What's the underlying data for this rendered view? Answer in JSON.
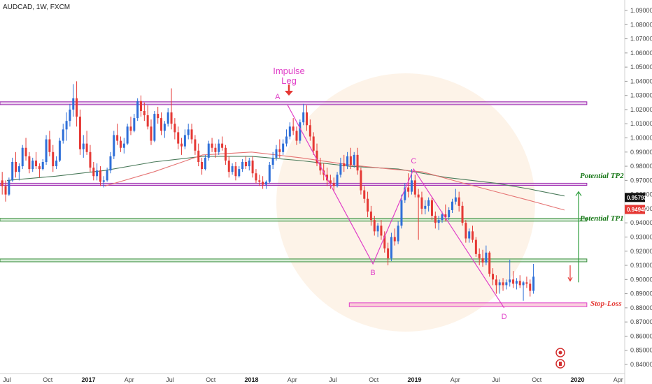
{
  "chart_title": "AUDCAD, 1W, FXCM",
  "chart_data": {
    "type": "candlestick",
    "title": "AUDCAD, 1W, FXCM",
    "symbol": "AUDCAD",
    "timeframe": "1W",
    "broker": "FXCM",
    "ylim": [
      0.835,
      1.095
    ],
    "y_ticks": [
      "0.84000",
      "0.85000",
      "0.86000",
      "0.87000",
      "0.88000",
      "0.89000",
      "0.90000",
      "0.91000",
      "0.92000",
      "0.93000",
      "0.94000",
      "0.95000",
      "0.96000",
      "0.97000",
      "0.98000",
      "0.99000",
      "1.00000",
      "1.01000",
      "1.02000",
      "1.03000",
      "1.04000",
      "1.05000",
      "1.06000",
      "1.07000",
      "1.08000",
      "1.09000"
    ],
    "x_ticks": [
      {
        "label": "Jul",
        "t": 0.0,
        "bold": false
      },
      {
        "label": "Oct",
        "t": 0.25,
        "bold": false
      },
      {
        "label": "2017",
        "t": 0.5,
        "bold": true
      },
      {
        "label": "Apr",
        "t": 0.75,
        "bold": false
      },
      {
        "label": "Jul",
        "t": 1.0,
        "bold": false
      },
      {
        "label": "Oct",
        "t": 1.25,
        "bold": false
      },
      {
        "label": "2018",
        "t": 1.5,
        "bold": true
      },
      {
        "label": "Apr",
        "t": 1.75,
        "bold": false
      },
      {
        "label": "Jul",
        "t": 2.0,
        "bold": false
      },
      {
        "label": "Oct",
        "t": 2.25,
        "bold": false
      },
      {
        "label": "2019",
        "t": 2.5,
        "bold": true
      },
      {
        "label": "Apr",
        "t": 2.75,
        "bold": false
      },
      {
        "label": "Jul",
        "t": 3.0,
        "bold": false
      },
      {
        "label": "Oct",
        "t": 3.25,
        "bold": false
      },
      {
        "label": "2020",
        "t": 3.5,
        "bold": true
      },
      {
        "label": "Apr",
        "t": 3.75,
        "bold": false
      }
    ],
    "price_line": 0.95793,
    "price_line_label": "0.95793",
    "ma_label_value": "0.94945",
    "zones": [
      {
        "name": "top-resistance",
        "y1": 1.0255,
        "y2": 1.0235,
        "t_end": 3.45,
        "color": "#9c27b0",
        "fill": "#e1bee7"
      },
      {
        "name": "tp2-zone",
        "y1": 0.968,
        "y2": 0.9665,
        "t_end": 3.45,
        "color": "#9c27b0",
        "fill": "#e1bee7"
      },
      {
        "name": "tp1-zone",
        "y1": 0.9432,
        "y2": 0.9412,
        "t_end": 3.45,
        "color": "#388e3c",
        "fill": "#c8e6c9"
      },
      {
        "name": "entry-zone",
        "y1": 0.9145,
        "y2": 0.9125,
        "t_end": 3.45,
        "color": "#388e3c",
        "fill": "#c8e6c9"
      },
      {
        "name": "stop-loss-zone",
        "y1": 0.8835,
        "y2": 0.8808,
        "t_start": 2.1,
        "t_end": 3.45,
        "color": "#e040c8",
        "fill": "#f8bbd0"
      }
    ],
    "abcd": [
      {
        "label": "A",
        "t": 1.72,
        "y": 1.0235
      },
      {
        "label": "B",
        "t": 2.245,
        "y": 0.911
      },
      {
        "label": "C",
        "t": 2.495,
        "y": 0.978
      },
      {
        "label": "D",
        "t": 3.05,
        "y": 0.88
      }
    ],
    "annotations": {
      "impulse_line1": "Impulse",
      "impulse_line2": "Leg",
      "tp2": "Potential TP2",
      "tp1": "Potential TP1",
      "stop_loss": "Stop-Loss"
    },
    "candles": [
      [
        0.972,
        0.978,
        0.964,
        0.97
      ],
      [
        0.97,
        0.976,
        0.96,
        0.966
      ],
      [
        0.966,
        0.97,
        0.955,
        0.96
      ],
      [
        0.96,
        0.972,
        0.959,
        0.97
      ],
      [
        0.97,
        0.986,
        0.969,
        0.983
      ],
      [
        0.983,
        0.99,
        0.972,
        0.976
      ],
      [
        0.976,
        0.982,
        0.97,
        0.98
      ],
      [
        0.98,
        0.995,
        0.978,
        0.993
      ],
      [
        0.993,
        1.0,
        0.984,
        0.987
      ],
      [
        0.987,
        0.99,
        0.975,
        0.978
      ],
      [
        0.978,
        0.986,
        0.976,
        0.984
      ],
      [
        0.984,
        0.99,
        0.978,
        0.98
      ],
      [
        0.98,
        0.982,
        0.972,
        0.978
      ],
      [
        0.978,
        0.985,
        0.977,
        0.983
      ],
      [
        0.983,
        1.002,
        0.981,
        0.999
      ],
      [
        0.999,
        1.005,
        0.987,
        0.99
      ],
      [
        0.99,
        0.995,
        0.976,
        0.98
      ],
      [
        0.98,
        0.987,
        0.978,
        0.984
      ],
      [
        0.984,
        1.0,
        0.983,
        0.998
      ],
      [
        0.998,
        1.01,
        0.996,
        1.006
      ],
      [
        1.006,
        1.018,
        0.998,
        1.012
      ],
      [
        1.012,
        1.024,
        1.008,
        1.02
      ],
      [
        1.02,
        1.038,
        1.015,
        1.028
      ],
      [
        1.028,
        1.04,
        1.008,
        1.015
      ],
      [
        1.015,
        1.02,
        0.988,
        0.992
      ],
      [
        0.992,
        1.002,
        0.986,
        0.996
      ],
      [
        0.996,
        1.005,
        0.988,
        0.99
      ],
      [
        0.99,
        0.995,
        0.976,
        0.979
      ],
      [
        0.979,
        0.983,
        0.97,
        0.973
      ],
      [
        0.973,
        0.982,
        0.97,
        0.977
      ],
      [
        0.977,
        0.98,
        0.966,
        0.969
      ],
      [
        0.969,
        0.973,
        0.965,
        0.97
      ],
      [
        0.97,
        0.979,
        0.969,
        0.977
      ],
      [
        0.977,
        0.99,
        0.975,
        0.987
      ],
      [
        0.987,
        1.005,
        0.985,
        1.002
      ],
      [
        1.002,
        1.01,
        0.995,
        0.998
      ],
      [
        0.998,
        1.001,
        0.99,
        0.993
      ],
      [
        0.993,
        1.0,
        0.989,
        0.996
      ],
      [
        0.996,
        1.01,
        0.995,
        1.008
      ],
      [
        1.008,
        1.015,
        1.002,
        1.005
      ],
      [
        1.005,
        1.017,
        1.004,
        1.014
      ],
      [
        1.014,
        1.028,
        1.012,
        1.026
      ],
      [
        1.026,
        1.03,
        1.015,
        1.019
      ],
      [
        1.019,
        1.025,
        1.012,
        1.016
      ],
      [
        1.016,
        1.023,
        1.006,
        1.008
      ],
      [
        1.008,
        1.013,
        0.995,
        0.998
      ],
      [
        0.998,
        1.019,
        0.997,
        1.017
      ],
      [
        1.017,
        1.022,
        1.01,
        1.014
      ],
      [
        1.014,
        1.018,
        1.002,
        1.005
      ],
      [
        1.005,
        1.012,
        1.0,
        1.01
      ],
      [
        1.01,
        1.021,
        1.008,
        1.018
      ],
      [
        1.018,
        1.035,
        1.006,
        1.01
      ],
      [
        1.01,
        1.014,
        0.999,
        1.004
      ],
      [
        1.004,
        1.008,
        0.992,
        0.996
      ],
      [
        0.996,
        1.0,
        0.988,
        0.994
      ],
      [
        0.994,
        1.006,
        0.992,
        1.002
      ],
      [
        1.002,
        1.01,
        0.999,
        1.006
      ],
      [
        1.006,
        1.01,
        0.996,
        0.999
      ],
      [
        0.999,
        1.002,
        0.988,
        0.991
      ],
      [
        0.991,
        0.996,
        0.98,
        0.983
      ],
      [
        0.983,
        0.986,
        0.974,
        0.978
      ],
      [
        0.978,
        0.988,
        0.977,
        0.986
      ],
      [
        0.986,
        0.998,
        0.984,
        0.996
      ],
      [
        0.996,
        1.0,
        0.99,
        0.993
      ],
      [
        0.993,
        0.996,
        0.986,
        0.99
      ],
      [
        0.99,
        0.999,
        0.988,
        0.996
      ],
      [
        0.996,
        1.001,
        0.991,
        0.993
      ],
      [
        0.993,
        0.995,
        0.981,
        0.984
      ],
      [
        0.984,
        0.987,
        0.972,
        0.976
      ],
      [
        0.976,
        0.982,
        0.974,
        0.98
      ],
      [
        0.98,
        0.983,
        0.97,
        0.973
      ],
      [
        0.973,
        0.98,
        0.972,
        0.978
      ],
      [
        0.978,
        0.985,
        0.976,
        0.983
      ],
      [
        0.983,
        0.987,
        0.978,
        0.98
      ],
      [
        0.98,
        0.986,
        0.977,
        0.984
      ],
      [
        0.984,
        0.987,
        0.972,
        0.975
      ],
      [
        0.975,
        0.978,
        0.968,
        0.97
      ],
      [
        0.97,
        0.974,
        0.966,
        0.969
      ],
      [
        0.969,
        0.973,
        0.964,
        0.967
      ],
      [
        0.967,
        0.97,
        0.964,
        0.969
      ],
      [
        0.969,
        0.983,
        0.968,
        0.981
      ],
      [
        0.981,
        0.99,
        0.978,
        0.986
      ],
      [
        0.986,
        0.995,
        0.984,
        0.992
      ],
      [
        0.992,
        0.999,
        0.986,
        0.99
      ],
      [
        0.99,
        0.999,
        0.988,
        0.996
      ],
      [
        0.996,
        1.006,
        0.994,
        1.001
      ],
      [
        1.001,
        1.011,
        0.999,
        1.008
      ],
      [
        1.008,
        1.014,
        1.002,
        1.005
      ],
      [
        1.005,
        1.008,
        0.995,
        0.998
      ],
      [
        0.998,
        1.013,
        0.996,
        1.011
      ],
      [
        1.011,
        1.024,
        1.009,
        1.018
      ],
      [
        1.018,
        1.023,
        1.005,
        1.009
      ],
      [
        1.009,
        1.013,
        0.998,
        1.001
      ],
      [
        1.001,
        1.004,
        0.988,
        0.991
      ],
      [
        0.991,
        0.996,
        0.98,
        0.982
      ],
      [
        0.982,
        0.986,
        0.974,
        0.977
      ],
      [
        0.977,
        0.982,
        0.97,
        0.974
      ],
      [
        0.974,
        0.979,
        0.966,
        0.97
      ],
      [
        0.97,
        0.974,
        0.964,
        0.968
      ],
      [
        0.968,
        0.972,
        0.962,
        0.966
      ],
      [
        0.966,
        0.976,
        0.965,
        0.974
      ],
      [
        0.974,
        0.986,
        0.972,
        0.982
      ],
      [
        0.982,
        0.988,
        0.976,
        0.98
      ],
      [
        0.98,
        0.99,
        0.978,
        0.987
      ],
      [
        0.987,
        0.993,
        0.978,
        0.981
      ],
      [
        0.981,
        0.99,
        0.979,
        0.988
      ],
      [
        0.988,
        0.993,
        0.974,
        0.977
      ],
      [
        0.977,
        0.979,
        0.96,
        0.963
      ],
      [
        0.963,
        0.966,
        0.954,
        0.957
      ],
      [
        0.957,
        0.962,
        0.944,
        0.948
      ],
      [
        0.948,
        0.952,
        0.938,
        0.942
      ],
      [
        0.942,
        0.945,
        0.931,
        0.934
      ],
      [
        0.934,
        0.94,
        0.93,
        0.938
      ],
      [
        0.938,
        0.942,
        0.928,
        0.931
      ],
      [
        0.931,
        0.934,
        0.919,
        0.922
      ],
      [
        0.922,
        0.926,
        0.91,
        0.915
      ],
      [
        0.915,
        0.933,
        0.913,
        0.93
      ],
      [
        0.93,
        0.936,
        0.924,
        0.927
      ],
      [
        0.927,
        0.941,
        0.925,
        0.938
      ],
      [
        0.938,
        0.96,
        0.936,
        0.956
      ],
      [
        0.956,
        0.968,
        0.954,
        0.965
      ],
      [
        0.965,
        0.975,
        0.958,
        0.962
      ],
      [
        0.962,
        0.978,
        0.96,
        0.97
      ],
      [
        0.97,
        0.974,
        0.958,
        0.96
      ],
      [
        0.96,
        0.964,
        0.928,
        0.958
      ],
      [
        0.958,
        0.962,
        0.946,
        0.95
      ],
      [
        0.95,
        0.956,
        0.946,
        0.952
      ],
      [
        0.952,
        0.958,
        0.948,
        0.956
      ],
      [
        0.956,
        0.958,
        0.942,
        0.945
      ],
      [
        0.945,
        0.948,
        0.936,
        0.94
      ],
      [
        0.94,
        0.945,
        0.935,
        0.942
      ],
      [
        0.942,
        0.948,
        0.94,
        0.946
      ],
      [
        0.946,
        0.953,
        0.941,
        0.944
      ],
      [
        0.944,
        0.951,
        0.942,
        0.949
      ],
      [
        0.949,
        0.957,
        0.947,
        0.955
      ],
      [
        0.955,
        0.964,
        0.953,
        0.958
      ],
      [
        0.958,
        0.962,
        0.948,
        0.952
      ],
      [
        0.952,
        0.955,
        0.938,
        0.94
      ],
      [
        0.94,
        0.942,
        0.926,
        0.929
      ],
      [
        0.929,
        0.936,
        0.926,
        0.934
      ],
      [
        0.934,
        0.938,
        0.926,
        0.928
      ],
      [
        0.928,
        0.93,
        0.916,
        0.918
      ],
      [
        0.918,
        0.922,
        0.91,
        0.915
      ],
      [
        0.915,
        0.921,
        0.909,
        0.912
      ],
      [
        0.912,
        0.924,
        0.91,
        0.919
      ],
      [
        0.919,
        0.92,
        0.902,
        0.904
      ],
      [
        0.904,
        0.908,
        0.896,
        0.9
      ],
      [
        0.9,
        0.903,
        0.89,
        0.896
      ],
      [
        0.896,
        0.9,
        0.89,
        0.898
      ],
      [
        0.898,
        0.901,
        0.892,
        0.896
      ],
      [
        0.896,
        0.9,
        0.893,
        0.898
      ],
      [
        0.898,
        0.914,
        0.895,
        0.9
      ],
      [
        0.9,
        0.906,
        0.894,
        0.897
      ],
      [
        0.897,
        0.901,
        0.893,
        0.899
      ],
      [
        0.899,
        0.903,
        0.894,
        0.896
      ],
      [
        0.896,
        0.899,
        0.885,
        0.898
      ],
      [
        0.898,
        0.902,
        0.894,
        0.897
      ],
      [
        0.897,
        0.9,
        0.888,
        0.892
      ],
      [
        0.892,
        0.911,
        0.89,
        0.902
      ]
    ],
    "ma_slow": [
      [
        0,
        0.97
      ],
      [
        0.3,
        0.973
      ],
      [
        0.6,
        0.977
      ],
      [
        0.9,
        0.983
      ],
      [
        1.2,
        0.987
      ],
      [
        1.5,
        0.987
      ],
      [
        1.8,
        0.984
      ],
      [
        2.1,
        0.98
      ],
      [
        2.4,
        0.978
      ],
      [
        2.7,
        0.972
      ],
      [
        3.0,
        0.968
      ],
      [
        3.2,
        0.964
      ],
      [
        3.42,
        0.959
      ]
    ],
    "ma_fast": [
      [
        0.6,
        0.966
      ],
      [
        0.9,
        0.976
      ],
      [
        1.2,
        0.988
      ],
      [
        1.5,
        0.99
      ],
      [
        1.8,
        0.986
      ],
      [
        2.1,
        0.981
      ],
      [
        2.35,
        0.978
      ],
      [
        2.55,
        0.976
      ],
      [
        2.8,
        0.968
      ],
      [
        3.0,
        0.962
      ],
      [
        3.2,
        0.956
      ],
      [
        3.42,
        0.949
      ]
    ]
  }
}
